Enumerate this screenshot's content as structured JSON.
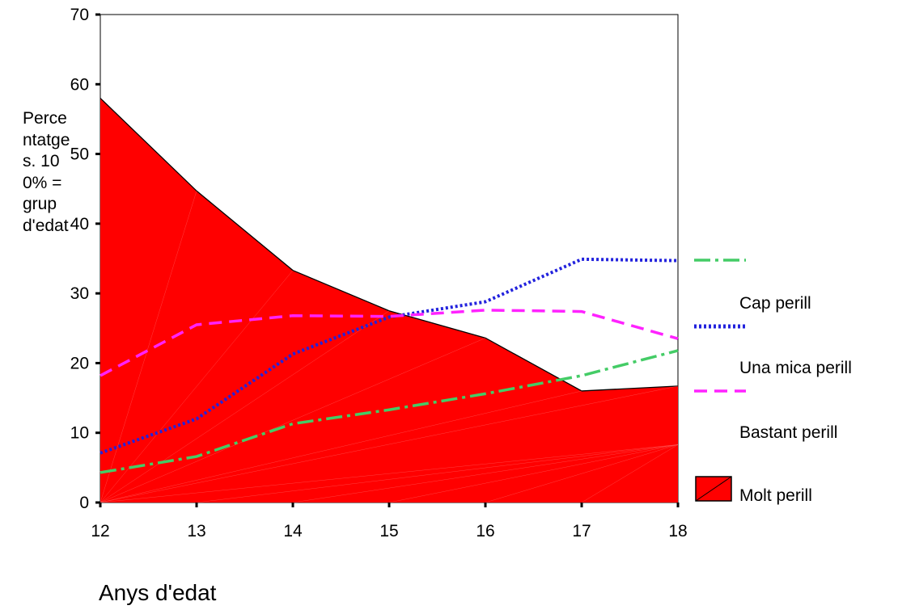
{
  "chart_data": {
    "type": "area",
    "title": "",
    "xlabel": "Anys d'edat",
    "ylabel": "Percentatges. 100% = grup d'edat",
    "xlim": [
      12,
      18
    ],
    "ylim": [
      0,
      70
    ],
    "x_ticks": [
      "12",
      "13",
      "14",
      "15",
      "16",
      "17",
      "18"
    ],
    "y_ticks": [
      "0",
      "10",
      "20",
      "30",
      "40",
      "50",
      "60",
      "70"
    ],
    "x": [
      12,
      13,
      14,
      15,
      16,
      17,
      18
    ],
    "series": [
      {
        "name": "Cap perill",
        "style": "dash-dot",
        "color": "#44cc66",
        "values": [
          4.3,
          6.6,
          11.3,
          13.3,
          15.6,
          18.2,
          21.8
        ]
      },
      {
        "name": "Una mica perill",
        "style": "dotted",
        "color": "#2222dd",
        "values": [
          7.1,
          12.0,
          21.3,
          26.6,
          28.8,
          34.9,
          34.7
        ]
      },
      {
        "name": "Bastant perill",
        "style": "dashed",
        "color": "#ff22ff",
        "values": [
          18.2,
          25.5,
          26.8,
          26.7,
          27.6,
          27.4,
          23.5
        ]
      },
      {
        "name": "Molt perill",
        "style": "area",
        "color": "#ff0000",
        "values": [
          58.0,
          44.7,
          33.3,
          27.5,
          23.6,
          16.0,
          16.7
        ]
      }
    ],
    "legend_position": "right",
    "grid": false
  },
  "colors": {
    "area_fill": "#ff0000",
    "area_edge": "#000000",
    "axis": "#000000"
  }
}
